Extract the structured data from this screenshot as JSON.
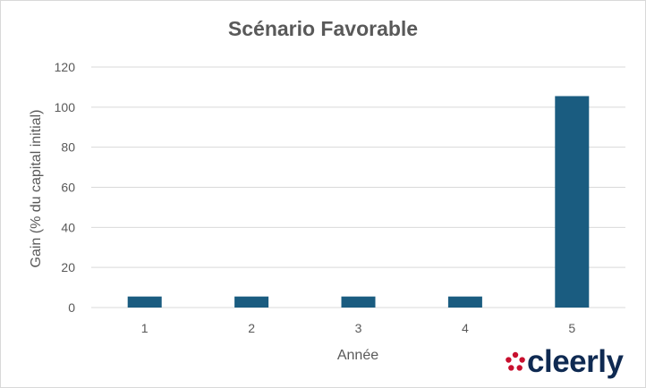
{
  "chart_data": {
    "type": "bar",
    "title": "Scénario Favorable",
    "xlabel": "Année",
    "ylabel": "Gain (% du capital initial)",
    "categories": [
      "1",
      "2",
      "3",
      "4",
      "5"
    ],
    "values": [
      5.5,
      5.5,
      5.5,
      5.5,
      105.5
    ],
    "ylim": [
      0,
      120
    ],
    "yticks": [
      "0",
      "20",
      "40",
      "60",
      "80",
      "100",
      "120"
    ],
    "grid": true,
    "bar_color": "#1a5c80"
  },
  "logo": {
    "text": "cleerly",
    "mark_color": "#c8102e",
    "text_color": "#0f2a52"
  }
}
